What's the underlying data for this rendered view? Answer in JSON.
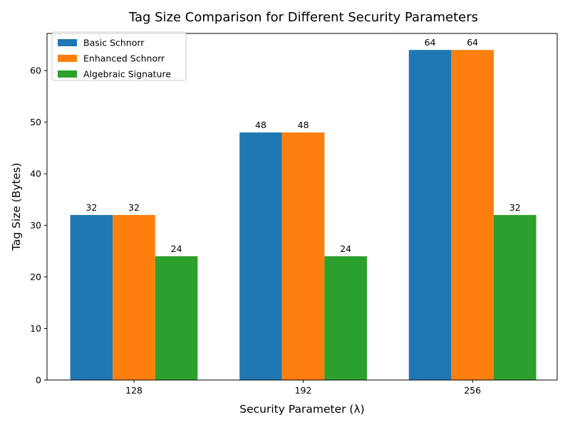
{
  "chart_data": {
    "type": "bar",
    "title": "Tag Size Comparison for Different Security Parameters",
    "xlabel": "Security Parameter (λ)",
    "ylabel": "Tag Size (Bytes)",
    "categories": [
      "128",
      "192",
      "256"
    ],
    "series": [
      {
        "name": "Basic Schnorr",
        "values": [
          32,
          48,
          64
        ],
        "color": "#1f77b4"
      },
      {
        "name": "Enhanced Schnorr",
        "values": [
          32,
          48,
          64
        ],
        "color": "#ff7f0e"
      },
      {
        "name": "Algebraic Signature",
        "values": [
          24,
          24,
          32
        ],
        "color": "#2ca02c"
      }
    ],
    "ylim": [
      0,
      67.2
    ],
    "yticks": [
      0,
      10,
      20,
      30,
      40,
      50,
      60
    ],
    "legend_position": "top-left",
    "grid": false,
    "data_labels": true
  }
}
